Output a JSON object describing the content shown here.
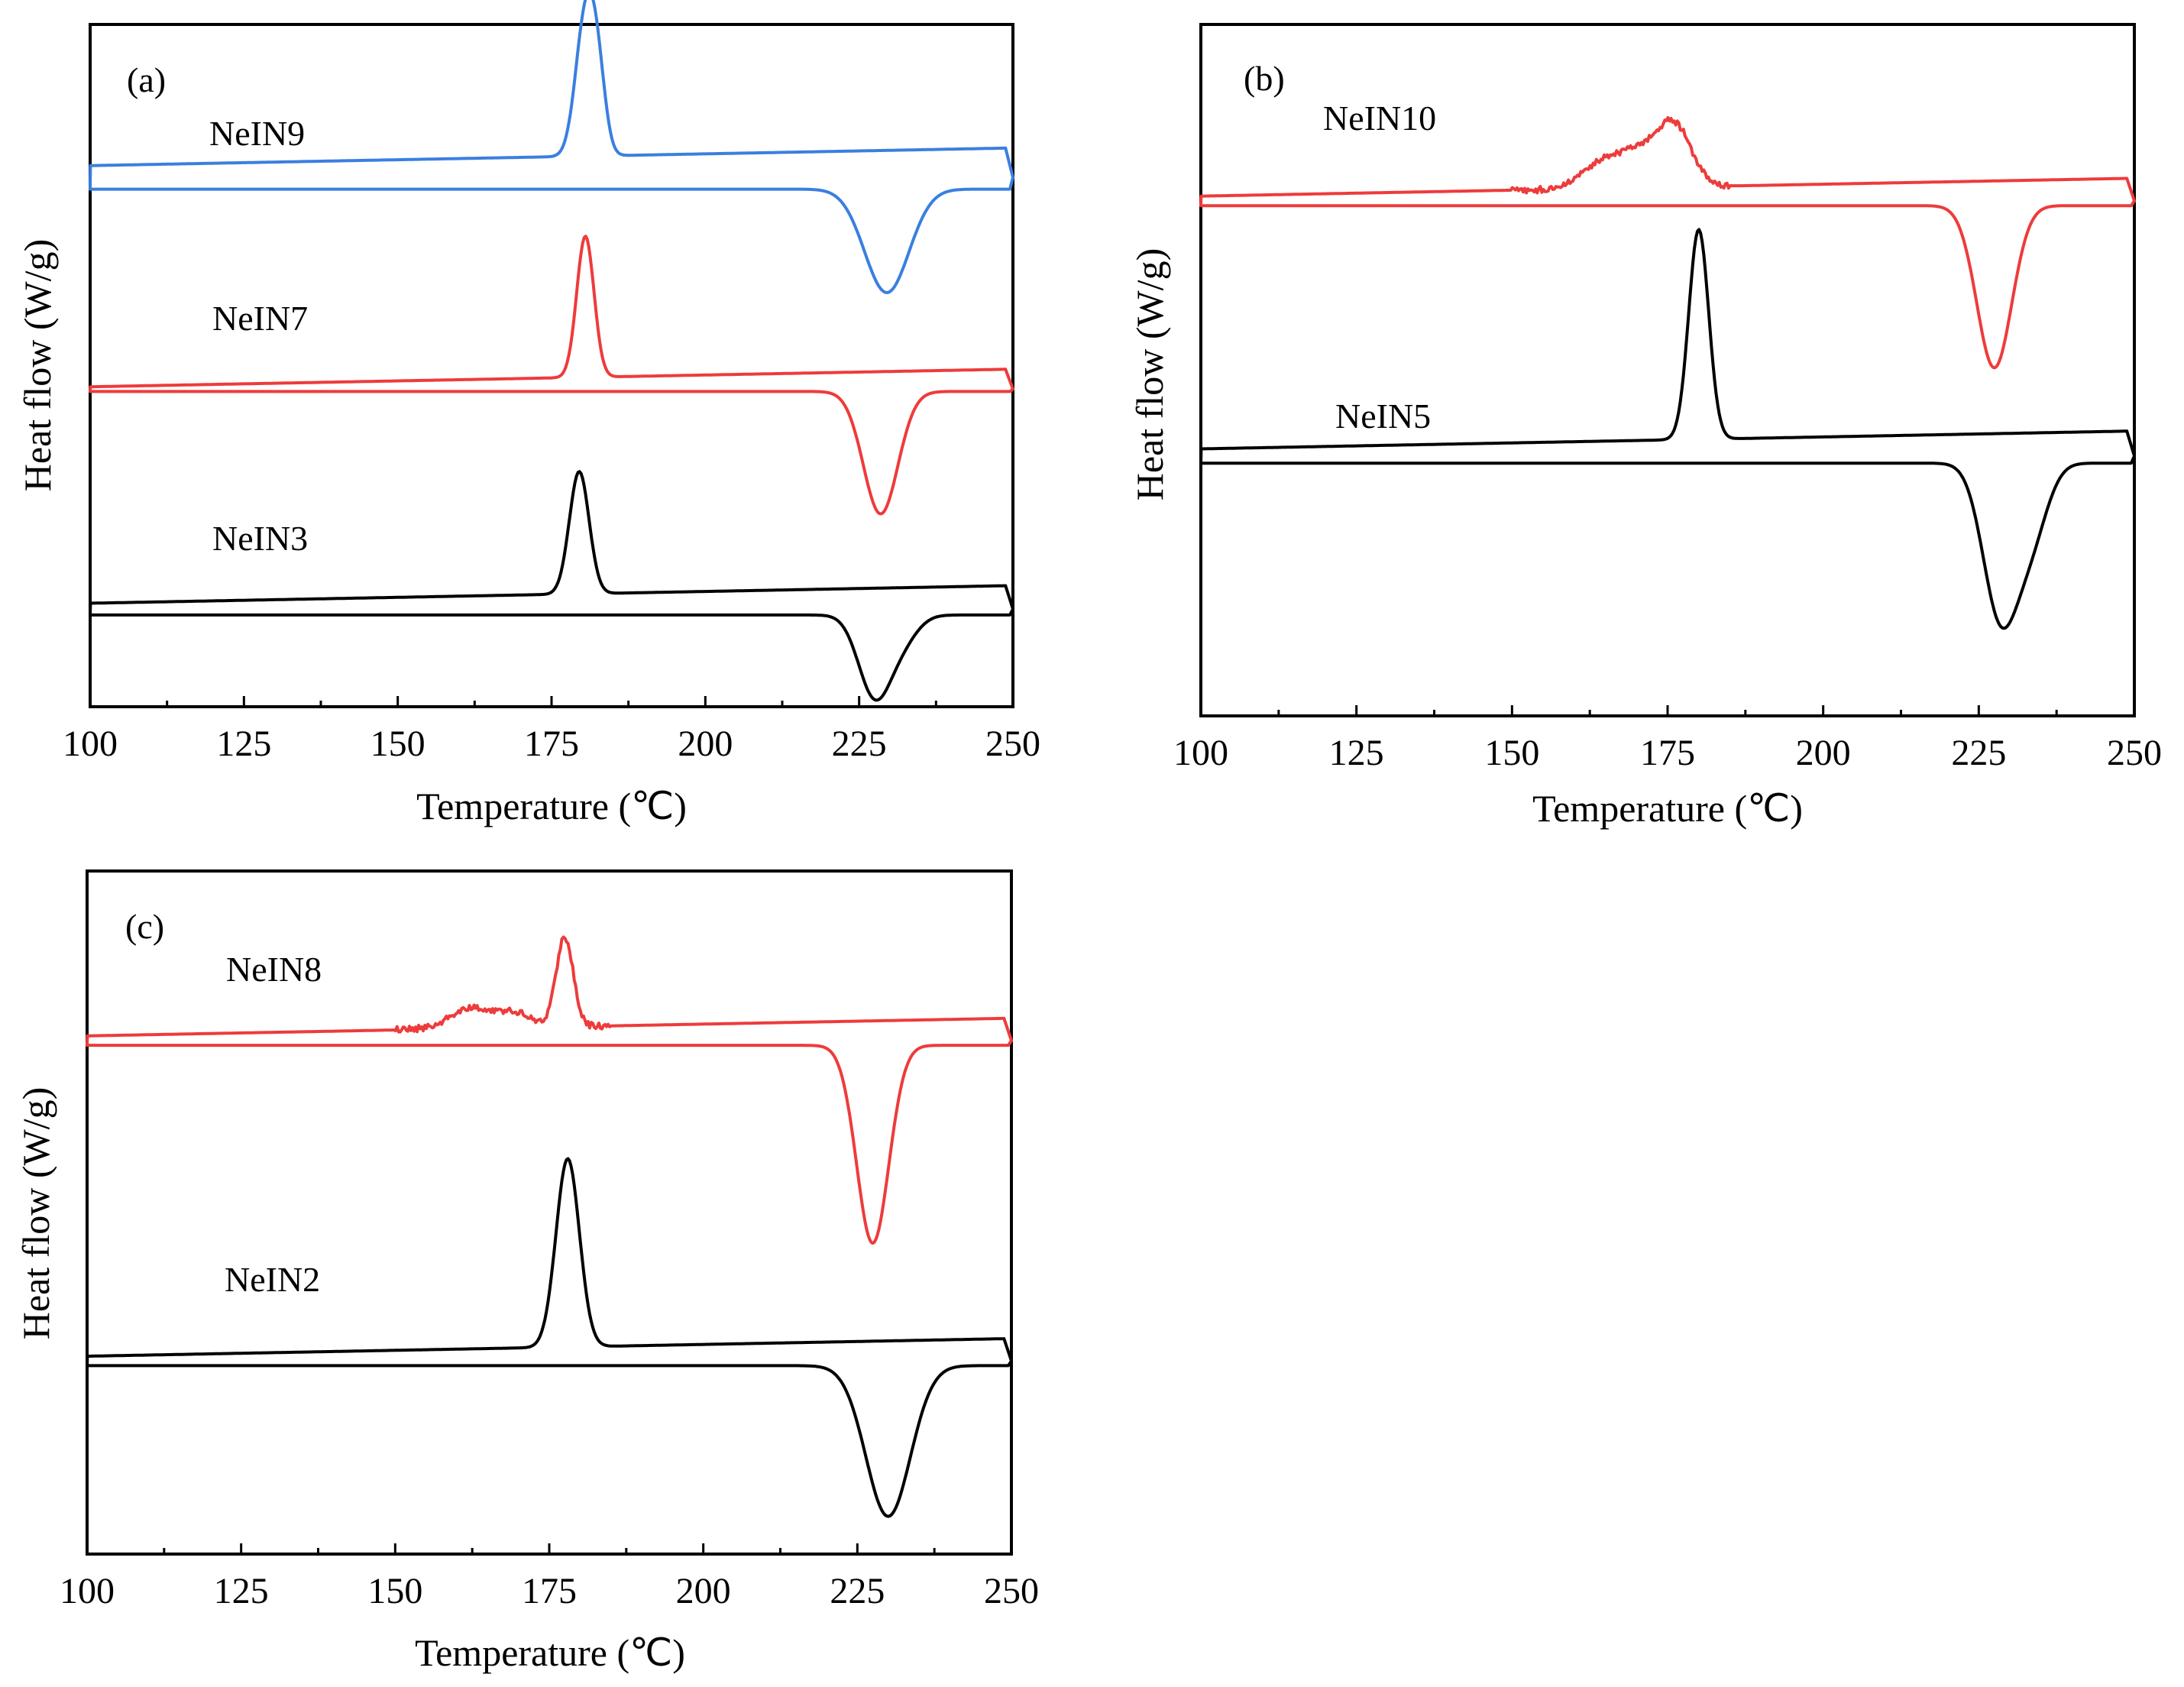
{
  "chart_data": [
    {
      "type": "line",
      "panel_label": "(a)",
      "xlabel": "Temperature (℃)",
      "ylabel": "Heat flow (W/g)",
      "xlim": [
        100,
        250
      ],
      "xticks": [
        100,
        125,
        150,
        175,
        200,
        225,
        250
      ],
      "grid": false,
      "series": [
        {
          "name": "NeIN9",
          "color": "#3a7fe0",
          "cooling": {
            "offset": 10.5,
            "peaks": [
              {
                "x": 180.5,
                "h": 2.9,
                "s": 1.6
              },
              {
                "x": 182.5,
                "h": 1.4,
                "s": 1.3
              }
            ]
          },
          "heating": {
            "offset": 10.0,
            "peaks": [
              {
                "x": 229.5,
                "h": 2.2,
                "s": 3.6
              }
            ]
          }
        },
        {
          "name": "NeIN7",
          "color": "#ee3b3b",
          "cooling": {
            "offset": 5.8,
            "peaks": [
              {
                "x": 180.5,
                "h": 3.0,
                "s": 1.4
              }
            ]
          },
          "heating": {
            "offset": 5.7,
            "peaks": [
              {
                "x": 228.5,
                "h": 2.6,
                "s": 2.8
              }
            ]
          }
        },
        {
          "name": "NeIN3",
          "color": "#000000",
          "cooling": {
            "offset": 1.2,
            "peaks": [
              {
                "x": 179.5,
                "h": 2.6,
                "s": 1.6
              }
            ]
          },
          "heating": {
            "offset": 0.95,
            "peaks": [
              {
                "x": 227.5,
                "h": 1.7,
                "s": 2.6
              },
              {
                "x": 232.0,
                "h": 0.5,
                "s": 2.5
              }
            ]
          }
        }
      ]
    },
    {
      "type": "line",
      "panel_label": "(b)",
      "xlabel": "Temperature (℃)",
      "ylabel": "Heat flow (W/g)",
      "xlim": [
        100,
        250
      ],
      "xticks": [
        100,
        125,
        150,
        175,
        200,
        225,
        250
      ],
      "grid": false,
      "series": [
        {
          "name": "NeIN10",
          "color": "#ee3b3b",
          "cooling": {
            "offset": 9.9,
            "peaks": [
              {
                "x": 164.0,
                "h": 0.5,
                "s": 3.0
              },
              {
                "x": 170.0,
                "h": 0.7,
                "s": 3.0
              },
              {
                "x": 176.0,
                "h": 1.3,
                "s": 2.8
              }
            ],
            "noise": 0.07
          },
          "heating": {
            "offset": 9.7,
            "peaks": [
              {
                "x": 227.5,
                "h": 3.4,
                "s": 2.8
              }
            ]
          }
        },
        {
          "name": "NeIN5",
          "color": "#000000",
          "cooling": {
            "offset": 4.6,
            "peaks": [
              {
                "x": 180.0,
                "h": 4.4,
                "s": 1.6
              }
            ]
          },
          "heating": {
            "offset": 4.3,
            "peaks": [
              {
                "x": 228.5,
                "h": 3.2,
                "s": 2.8
              },
              {
                "x": 233.5,
                "h": 1.4,
                "s": 2.6
              }
            ]
          }
        }
      ]
    },
    {
      "type": "line",
      "panel_label": "(c)",
      "xlabel": "Temperature (℃)",
      "ylabel": "Heat flow (W/g)",
      "xlim": [
        100,
        250
      ],
      "xticks": [
        100,
        125,
        150,
        175,
        200,
        225,
        250
      ],
      "grid": false,
      "series": [
        {
          "name": "NeIN8",
          "color": "#ee3b3b",
          "cooling": {
            "offset": 10.0,
            "peaks": [
              {
                "x": 163.0,
                "h": 0.45,
                "s": 3.8
              },
              {
                "x": 170.0,
                "h": 0.25,
                "s": 2.2
              },
              {
                "x": 177.5,
                "h": 1.9,
                "s": 1.4
              }
            ],
            "noise": 0.07
          },
          "heating": {
            "offset": 9.8,
            "peaks": [
              {
                "x": 227.5,
                "h": 4.2,
                "s": 2.6
              }
            ]
          }
        },
        {
          "name": "NeIN2",
          "color": "#000000",
          "cooling": {
            "offset": 3.2,
            "peaks": [
              {
                "x": 178.0,
                "h": 4.0,
                "s": 1.9
              }
            ]
          },
          "heating": {
            "offset": 3.0,
            "peaks": [
              {
                "x": 230.0,
                "h": 3.2,
                "s": 3.6
              }
            ]
          }
        }
      ]
    }
  ]
}
